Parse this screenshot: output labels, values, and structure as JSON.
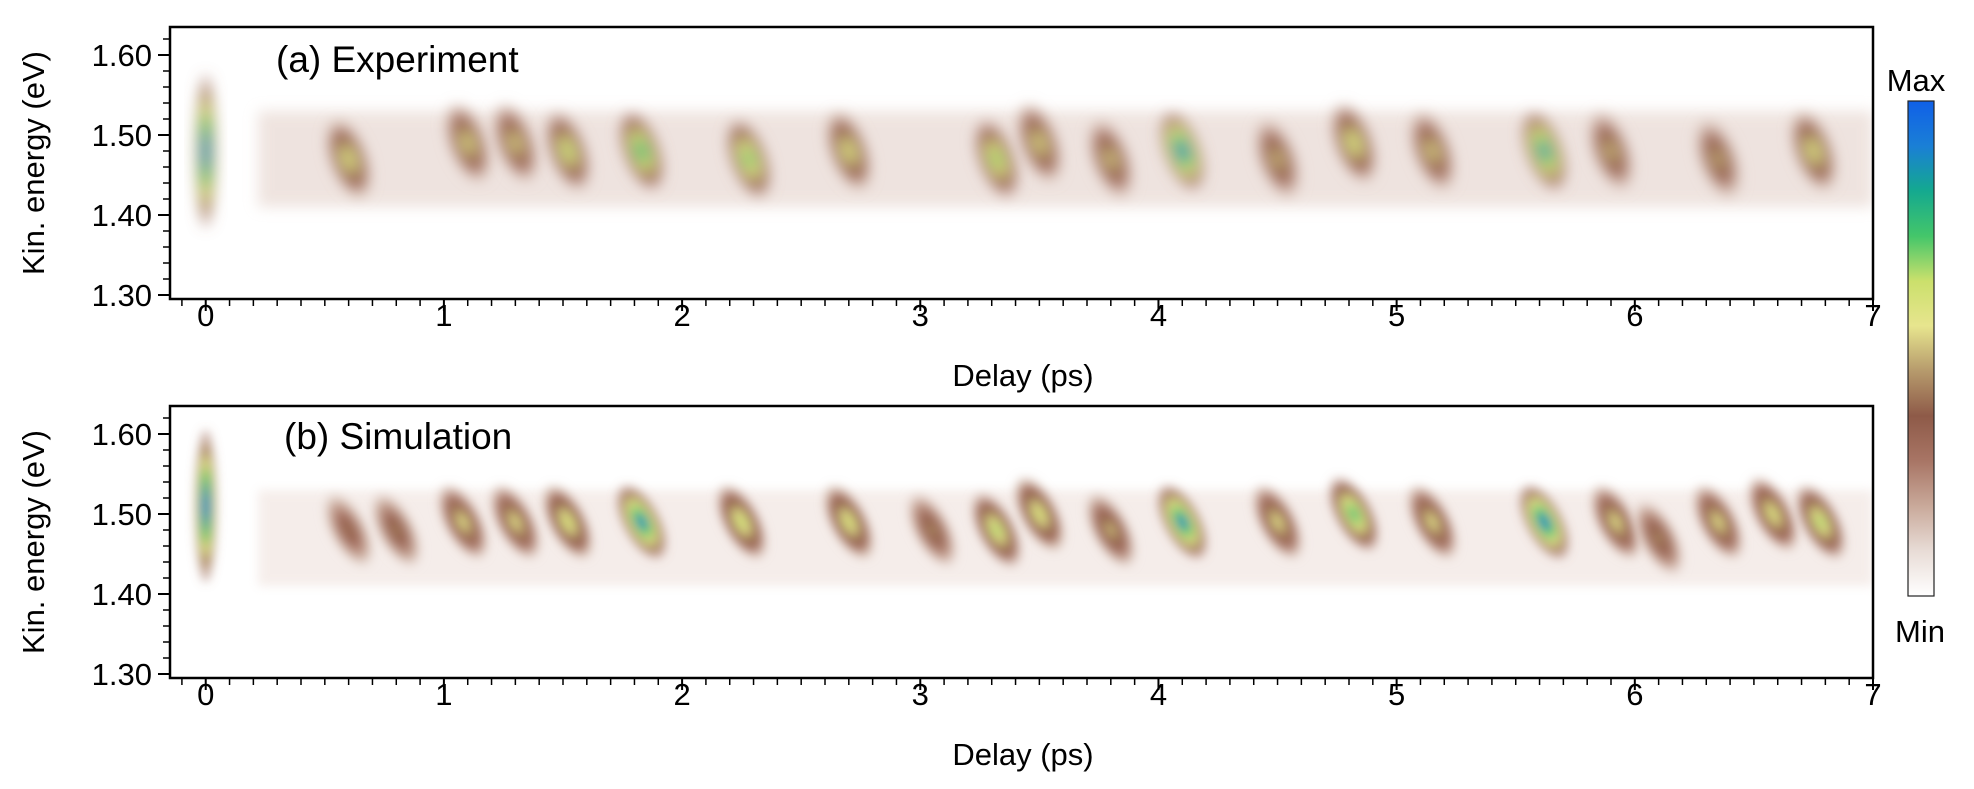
{
  "chart_data": [
    {
      "type": "heatmap",
      "panel": "a",
      "title": "(a) Experiment",
      "xlabel": "Delay (ps)",
      "ylabel": "Kin. energy (eV)",
      "xlim": [
        -0.15,
        7.0
      ],
      "ylim": [
        1.295,
        1.635
      ],
      "xticks": [
        0,
        1,
        2,
        3,
        4,
        5,
        6,
        7
      ],
      "xticklabels": [
        "0",
        "1",
        "2",
        "3",
        "4",
        "5",
        "6",
        "7"
      ],
      "yticks": [
        1.3,
        1.4,
        1.5,
        1.6
      ],
      "yticklabels": [
        "1.30",
        "1.40",
        "1.50",
        "1.60"
      ],
      "grid": false,
      "peaks": [
        {
          "x": 0.0,
          "y": 1.48,
          "intensity": 1.0
        },
        {
          "x": 0.6,
          "y": 1.47,
          "intensity": 0.62
        },
        {
          "x": 1.1,
          "y": 1.49,
          "intensity": 0.58
        },
        {
          "x": 1.3,
          "y": 1.49,
          "intensity": 0.56
        },
        {
          "x": 1.52,
          "y": 1.48,
          "intensity": 0.66
        },
        {
          "x": 1.83,
          "y": 1.48,
          "intensity": 0.82
        },
        {
          "x": 2.28,
          "y": 1.47,
          "intensity": 0.76
        },
        {
          "x": 2.7,
          "y": 1.48,
          "intensity": 0.62
        },
        {
          "x": 3.32,
          "y": 1.47,
          "intensity": 0.72
        },
        {
          "x": 3.5,
          "y": 1.49,
          "intensity": 0.58
        },
        {
          "x": 3.8,
          "y": 1.47,
          "intensity": 0.54
        },
        {
          "x": 4.1,
          "y": 1.48,
          "intensity": 0.95
        },
        {
          "x": 4.5,
          "y": 1.47,
          "intensity": 0.52
        },
        {
          "x": 4.82,
          "y": 1.49,
          "intensity": 0.64
        },
        {
          "x": 5.15,
          "y": 1.48,
          "intensity": 0.56
        },
        {
          "x": 5.62,
          "y": 1.48,
          "intensity": 0.9
        },
        {
          "x": 5.9,
          "y": 1.48,
          "intensity": 0.52
        },
        {
          "x": 6.35,
          "y": 1.47,
          "intensity": 0.5
        },
        {
          "x": 6.75,
          "y": 1.48,
          "intensity": 0.62
        }
      ]
    },
    {
      "type": "heatmap",
      "panel": "b",
      "title": "(b) Simulation",
      "xlabel": "Delay (ps)",
      "ylabel": "Kin. energy (eV)",
      "xlim": [
        -0.15,
        7.0
      ],
      "ylim": [
        1.295,
        1.635
      ],
      "xticks": [
        0,
        1,
        2,
        3,
        4,
        5,
        6,
        7
      ],
      "xticklabels": [
        "0",
        "1",
        "2",
        "3",
        "4",
        "5",
        "6",
        "7"
      ],
      "yticks": [
        1.3,
        1.4,
        1.5,
        1.6
      ],
      "yticklabels": [
        "1.30",
        "1.40",
        "1.50",
        "1.60"
      ],
      "grid": false,
      "peaks": [
        {
          "x": 0.0,
          "y": 1.51,
          "intensity": 1.0
        },
        {
          "x": 0.6,
          "y": 1.48,
          "intensity": 0.4
        },
        {
          "x": 0.8,
          "y": 1.48,
          "intensity": 0.42
        },
        {
          "x": 1.08,
          "y": 1.49,
          "intensity": 0.56
        },
        {
          "x": 1.3,
          "y": 1.49,
          "intensity": 0.56
        },
        {
          "x": 1.52,
          "y": 1.49,
          "intensity": 0.62
        },
        {
          "x": 1.83,
          "y": 1.49,
          "intensity": 0.92
        },
        {
          "x": 2.25,
          "y": 1.49,
          "intensity": 0.64
        },
        {
          "x": 2.7,
          "y": 1.49,
          "intensity": 0.62
        },
        {
          "x": 3.05,
          "y": 1.48,
          "intensity": 0.44
        },
        {
          "x": 3.32,
          "y": 1.48,
          "intensity": 0.66
        },
        {
          "x": 3.5,
          "y": 1.5,
          "intensity": 0.62
        },
        {
          "x": 3.8,
          "y": 1.48,
          "intensity": 0.5
        },
        {
          "x": 4.1,
          "y": 1.49,
          "intensity": 0.92
        },
        {
          "x": 4.5,
          "y": 1.49,
          "intensity": 0.56
        },
        {
          "x": 4.82,
          "y": 1.5,
          "intensity": 0.78
        },
        {
          "x": 5.15,
          "y": 1.49,
          "intensity": 0.56
        },
        {
          "x": 5.62,
          "y": 1.49,
          "intensity": 0.95
        },
        {
          "x": 5.92,
          "y": 1.49,
          "intensity": 0.56
        },
        {
          "x": 6.1,
          "y": 1.47,
          "intensity": 0.44
        },
        {
          "x": 6.35,
          "y": 1.49,
          "intensity": 0.56
        },
        {
          "x": 6.58,
          "y": 1.5,
          "intensity": 0.6
        },
        {
          "x": 6.78,
          "y": 1.49,
          "intensity": 0.66
        }
      ]
    }
  ],
  "colorbar": {
    "max_label": "Max",
    "min_label": "Min",
    "colors": [
      "#ffffff",
      "#e8dcd6",
      "#c9a99a",
      "#a87565",
      "#8e5a48",
      "#b69a6c",
      "#e7e58e",
      "#cbe06c",
      "#44c66a",
      "#14a98f",
      "#1a7fd6",
      "#1060e8"
    ]
  }
}
